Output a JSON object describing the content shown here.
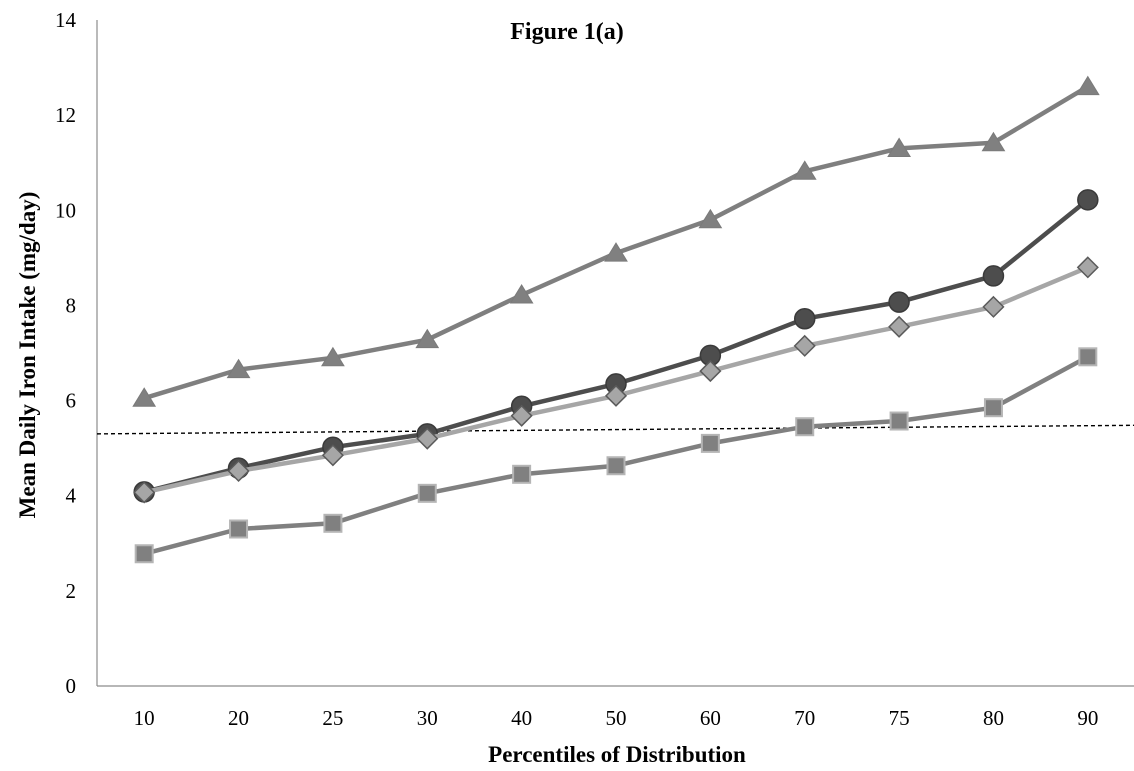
{
  "chart_data": {
    "type": "line",
    "title": "Figure 1(a)",
    "xlabel": "Percentiles of Distribution",
    "ylabel": "Mean Daily Iron Intake (mg/day)",
    "categories": [
      "10",
      "20",
      "25",
      "30",
      "40",
      "50",
      "60",
      "70",
      "75",
      "80",
      "90"
    ],
    "ylim": [
      0,
      14
    ],
    "yticks": [
      0,
      2,
      4,
      6,
      8,
      10,
      12,
      14
    ],
    "grid": false,
    "legend": "none",
    "series": [
      {
        "marker": "triangle",
        "color": "#7f7f7f",
        "values": [
          6.05,
          6.65,
          6.9,
          7.28,
          8.22,
          9.1,
          9.8,
          10.82,
          11.3,
          11.42,
          12.6
        ]
      },
      {
        "marker": "circle",
        "color": "#4d4d4d",
        "values": [
          4.08,
          4.58,
          5.02,
          5.3,
          5.88,
          6.35,
          6.95,
          7.72,
          8.07,
          8.62,
          10.22
        ]
      },
      {
        "marker": "diamond",
        "color": "#a6a6a6",
        "values": [
          4.07,
          4.52,
          4.85,
          5.2,
          5.68,
          6.1,
          6.62,
          7.15,
          7.55,
          7.97,
          8.8
        ]
      },
      {
        "marker": "square",
        "color": "#808080",
        "values": [
          2.78,
          3.3,
          3.42,
          4.05,
          4.45,
          4.63,
          5.1,
          5.45,
          5.57,
          5.85,
          6.92
        ]
      }
    ],
    "reference_line": {
      "style": "dashed",
      "color": "#000000",
      "y_start": 5.3,
      "y_end": 5.48
    }
  }
}
